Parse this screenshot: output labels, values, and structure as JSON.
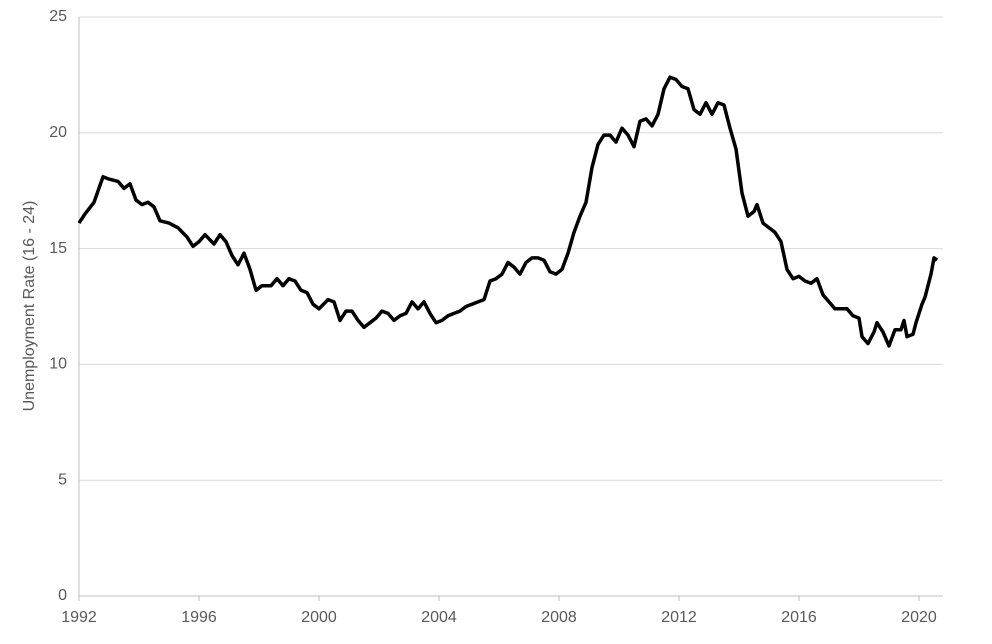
{
  "chart_data": {
    "type": "line",
    "y_label": "Unemployment Rate (16 - 24)",
    "xlim": [
      1992,
      2020.8
    ],
    "xticks": [
      1992,
      1996,
      2000,
      2004,
      2008,
      2012,
      2016,
      2020
    ],
    "ylim": [
      0,
      25
    ],
    "yticks": [
      0,
      5,
      10,
      15,
      20,
      25
    ],
    "grid": true,
    "x": [
      1992.0,
      1992.2,
      1992.5,
      1992.8,
      1993.0,
      1993.3,
      1993.5,
      1993.7,
      1993.9,
      1994.1,
      1994.3,
      1994.5,
      1994.7,
      1995.0,
      1995.3,
      1995.6,
      1995.8,
      1996.0,
      1996.2,
      1996.5,
      1996.7,
      1996.9,
      1997.1,
      1997.3,
      1997.5,
      1997.7,
      1997.9,
      1998.1,
      1998.4,
      1998.6,
      1998.8,
      1999.0,
      1999.2,
      1999.4,
      1999.6,
      1999.8,
      2000.0,
      2000.3,
      2000.5,
      2000.7,
      2000.9,
      2001.1,
      2001.3,
      2001.5,
      2001.7,
      2001.9,
      2002.1,
      2002.3,
      2002.5,
      2002.7,
      2002.9,
      2003.1,
      2003.3,
      2003.5,
      2003.7,
      2003.9,
      2004.1,
      2004.3,
      2004.5,
      2004.7,
      2004.9,
      2005.1,
      2005.3,
      2005.5,
      2005.7,
      2005.9,
      2006.1,
      2006.3,
      2006.5,
      2006.7,
      2006.9,
      2007.1,
      2007.3,
      2007.5,
      2007.7,
      2007.9,
      2008.1,
      2008.3,
      2008.5,
      2008.7,
      2008.9,
      2009.1,
      2009.3,
      2009.5,
      2009.7,
      2009.9,
      2010.1,
      2010.3,
      2010.5,
      2010.7,
      2010.9,
      2011.1,
      2011.3,
      2011.5,
      2011.7,
      2011.9,
      2012.1,
      2012.3,
      2012.5,
      2012.7,
      2012.9,
      2013.1,
      2013.3,
      2013.5,
      2013.7,
      2013.9,
      2014.1,
      2014.3,
      2014.5,
      2014.6,
      2014.8,
      2015.0,
      2015.2,
      2015.4,
      2015.6,
      2015.8,
      2016.0,
      2016.2,
      2016.4,
      2016.6,
      2016.8,
      2017.0,
      2017.2,
      2017.4,
      2017.6,
      2017.8,
      2018.0,
      2018.1,
      2018.3,
      2018.5,
      2018.6,
      2018.8,
      2019.0,
      2019.2,
      2019.4,
      2019.5,
      2019.6,
      2019.8,
      2019.9,
      2020.1,
      2020.2,
      2020.4,
      2020.5,
      2020.6
    ],
    "series": [
      {
        "color": "#000000",
        "values": [
          16.1,
          16.5,
          17.0,
          18.1,
          18.0,
          17.9,
          17.6,
          17.8,
          17.1,
          16.9,
          17.0,
          16.8,
          16.2,
          16.1,
          15.9,
          15.5,
          15.1,
          15.3,
          15.6,
          15.2,
          15.6,
          15.3,
          14.7,
          14.3,
          14.8,
          14.1,
          13.2,
          13.4,
          13.4,
          13.7,
          13.4,
          13.7,
          13.6,
          13.2,
          13.1,
          12.6,
          12.4,
          12.8,
          12.7,
          11.9,
          12.3,
          12.3,
          11.9,
          11.6,
          11.8,
          12.0,
          12.3,
          12.2,
          11.9,
          12.1,
          12.2,
          12.7,
          12.4,
          12.7,
          12.2,
          11.8,
          11.9,
          12.1,
          12.2,
          12.3,
          12.5,
          12.6,
          12.7,
          12.8,
          13.6,
          13.7,
          13.9,
          14.4,
          14.2,
          13.9,
          14.4,
          14.6,
          14.6,
          14.5,
          14.0,
          13.9,
          14.1,
          14.8,
          15.7,
          16.4,
          17.0,
          18.5,
          19.5,
          19.9,
          19.9,
          19.6,
          20.2,
          19.9,
          19.4,
          20.5,
          20.6,
          20.3,
          20.8,
          21.9,
          22.4,
          22.3,
          22.0,
          21.9,
          21.0,
          20.8,
          21.3,
          20.8,
          21.3,
          21.2,
          20.2,
          19.3,
          17.4,
          16.4,
          16.6,
          16.9,
          16.1,
          15.9,
          15.7,
          15.3,
          14.1,
          13.7,
          13.8,
          13.6,
          13.5,
          13.7,
          13.0,
          12.7,
          12.4,
          12.4,
          12.4,
          12.1,
          12.0,
          11.2,
          10.9,
          11.4,
          11.8,
          11.4,
          10.8,
          11.5,
          11.5,
          11.9,
          11.2,
          11.3,
          11.8,
          12.6,
          12.9,
          13.9,
          14.6,
          14.5
        ]
      }
    ]
  }
}
